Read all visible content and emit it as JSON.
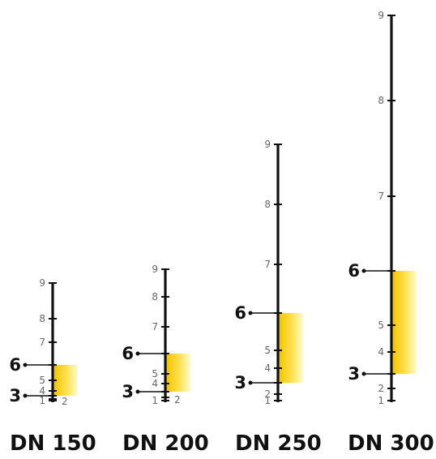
{
  "scales": [
    {
      "name": "DN 150",
      "tick_labels": [
        "1",
        "2",
        "3",
        "4",
        "5",
        "6",
        "7",
        "8",
        "9"
      ],
      "range_low": "3",
      "range_high": "6"
    },
    {
      "name": "DN 200",
      "tick_labels": [
        "1",
        "2",
        "3",
        "4",
        "5",
        "6",
        "7",
        "8",
        "9"
      ],
      "range_low": "3",
      "range_high": "6"
    },
    {
      "name": "DN 250",
      "tick_labels": [
        "1",
        "2",
        "3",
        "4",
        "5",
        "6",
        "7",
        "8",
        "9"
      ],
      "range_low": "3",
      "range_high": "6"
    },
    {
      "name": "DN 300",
      "tick_labels": [
        "1",
        "2",
        "3",
        "4",
        "5",
        "6",
        "7",
        "8",
        "9"
      ],
      "range_low": "3",
      "range_high": "6"
    }
  ],
  "colors": {
    "axis": "#111111",
    "tick_text": "#666666",
    "highlight_top": "#f0c400",
    "highlight_bottom": "#fff6a8"
  }
}
